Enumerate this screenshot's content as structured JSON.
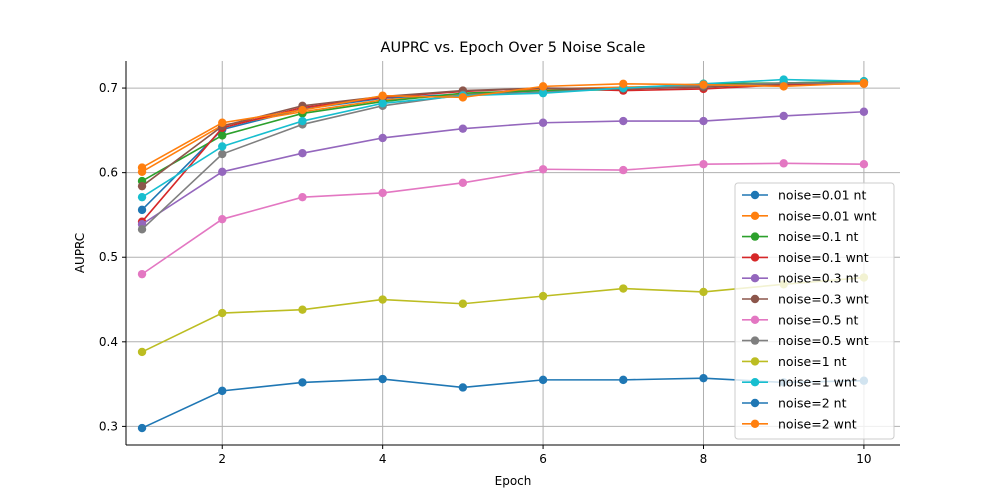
{
  "chart_data": {
    "type": "line",
    "title": "AUPRC vs. Epoch Over 5 Noise Scale",
    "xlabel": "Epoch",
    "ylabel": "AUPRC",
    "xlim": [
      0.8,
      10.45
    ],
    "ylim": [
      0.278,
      0.732
    ],
    "xticks": [
      2,
      4,
      6,
      8,
      10
    ],
    "yticks": [
      0.3,
      0.4,
      0.5,
      0.6,
      0.7
    ],
    "grid": true,
    "legend_position": "lower-right",
    "x": [
      1,
      2,
      3,
      4,
      5,
      6,
      7,
      8,
      9,
      10
    ],
    "series": [
      {
        "name": "noise=0.01 nt",
        "color": "#1f77b4",
        "values": [
          0.556,
          0.651,
          0.675,
          0.688,
          0.693,
          0.697,
          0.699,
          0.703,
          0.706,
          0.708
        ]
      },
      {
        "name": "noise=0.01 wnt",
        "color": "#ff7f0e",
        "values": [
          0.601,
          0.656,
          0.672,
          0.686,
          0.692,
          0.699,
          0.701,
          0.703,
          0.704,
          0.705
        ]
      },
      {
        "name": "noise=0.1 nt",
        "color": "#2ca02c",
        "values": [
          0.59,
          0.644,
          0.67,
          0.684,
          0.694,
          0.697,
          0.698,
          0.705,
          0.706,
          0.708
        ]
      },
      {
        "name": "noise=0.1 wnt",
        "color": "#d62728",
        "values": [
          0.542,
          0.653,
          0.677,
          0.689,
          0.696,
          0.7,
          0.697,
          0.699,
          0.704,
          0.707
        ]
      },
      {
        "name": "noise=0.3 nt",
        "color": "#9467bd",
        "values": [
          0.539,
          0.601,
          0.623,
          0.641,
          0.652,
          0.659,
          0.661,
          0.661,
          0.667,
          0.672
        ]
      },
      {
        "name": "noise=0.3 wnt",
        "color": "#8c564b",
        "values": [
          0.584,
          0.655,
          0.679,
          0.69,
          0.697,
          0.7,
          0.699,
          0.701,
          0.705,
          0.707
        ]
      },
      {
        "name": "noise=0.5 nt",
        "color": "#e377c2",
        "values": [
          0.48,
          0.545,
          0.571,
          0.576,
          0.588,
          0.604,
          0.603,
          0.61,
          0.611,
          0.61
        ]
      },
      {
        "name": "noise=0.5 wnt",
        "color": "#7f7f7f",
        "values": [
          0.533,
          0.622,
          0.657,
          0.679,
          0.692,
          0.695,
          0.7,
          0.703,
          0.706,
          0.706
        ]
      },
      {
        "name": "noise=1 nt",
        "color": "#bcbd22",
        "values": [
          0.388,
          0.434,
          0.438,
          0.45,
          0.445,
          0.454,
          0.463,
          0.459,
          0.468,
          0.476
        ]
      },
      {
        "name": "noise=1 wnt",
        "color": "#17becf",
        "values": [
          0.571,
          0.631,
          0.661,
          0.682,
          0.691,
          0.694,
          0.7,
          0.705,
          0.71,
          0.708
        ]
      },
      {
        "name": "noise=2 nt",
        "color": "#1f77b4",
        "values": [
          0.298,
          0.342,
          0.352,
          0.356,
          0.346,
          0.355,
          0.355,
          0.357,
          0.352,
          0.354
        ]
      },
      {
        "name": "noise=2 wnt",
        "color": "#ff7f0e",
        "values": [
          0.606,
          0.659,
          0.674,
          0.691,
          0.689,
          0.702,
          0.705,
          0.704,
          0.702,
          0.706
        ]
      }
    ]
  }
}
